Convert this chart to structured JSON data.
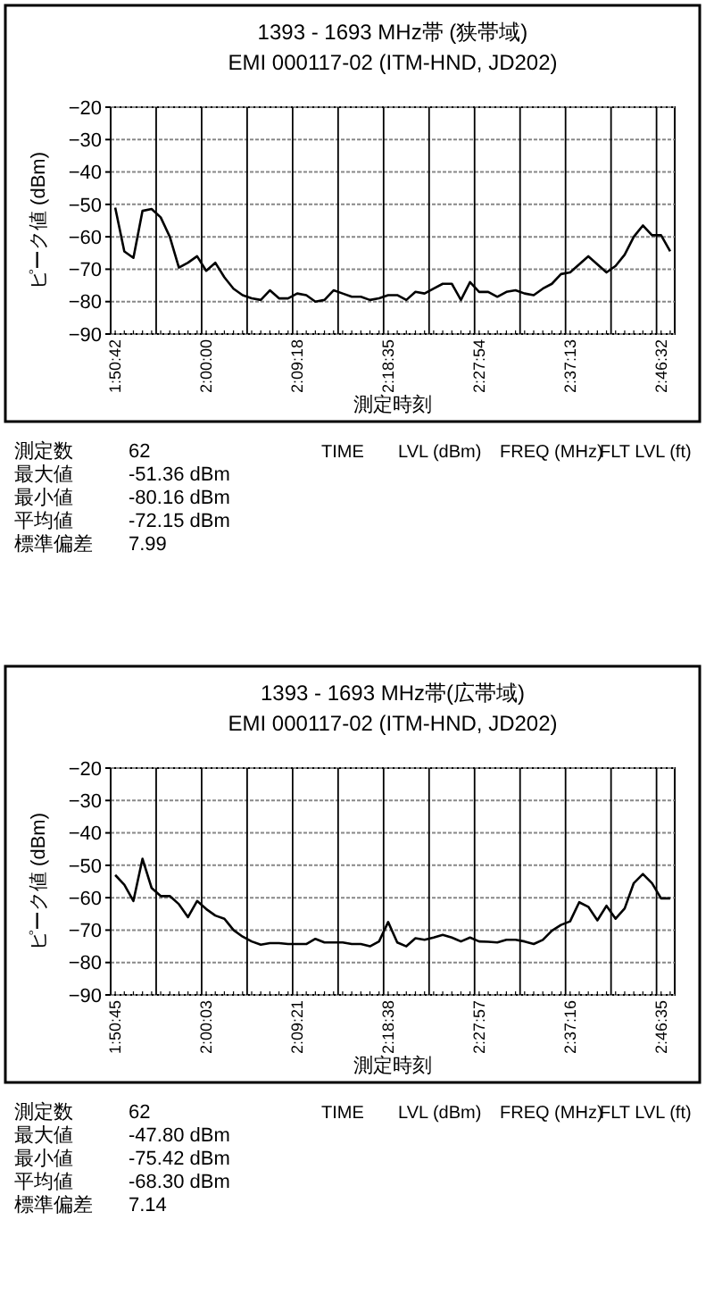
{
  "chart_data": [
    {
      "type": "line",
      "title": "1393 - 1693 MHz帯 (狭帯域)",
      "subtitle": "EMI 000117-02 (ITM-HND, JD202)",
      "xlabel": "測定時刻",
      "ylabel": "ピーク値 (dBm)",
      "categories": [
        "1:50:42",
        null,
        null,
        null,
        null,
        null,
        null,
        null,
        null,
        null,
        "2:00:00",
        null,
        null,
        null,
        null,
        null,
        null,
        null,
        null,
        null,
        "2:09:18",
        null,
        null,
        null,
        null,
        null,
        null,
        null,
        null,
        null,
        "2:18:35",
        null,
        null,
        null,
        null,
        null,
        null,
        null,
        null,
        null,
        "2:27:54",
        null,
        null,
        null,
        null,
        null,
        null,
        null,
        null,
        null,
        "2:37:13",
        null,
        null,
        null,
        null,
        null,
        null,
        null,
        null,
        null,
        "2:46:32",
        null
      ],
      "series": [
        {
          "color": "#000000",
          "values": [
            -51,
            -64.5,
            -66.5,
            -52,
            -51.4,
            -54,
            -60,
            -69.5,
            -68,
            -66,
            -70.5,
            -68,
            -72.5,
            -76,
            -78,
            -79,
            -79.5,
            -76.5,
            -79,
            -79,
            -77.5,
            -78,
            -80,
            -79.5,
            -76.5,
            -77.5,
            -78.5,
            -78.5,
            -79.5,
            -79,
            -78,
            -78,
            -79.5,
            -77,
            -77.5,
            -76,
            -74.5,
            -74.5,
            -79.5,
            -74,
            -77,
            -77,
            -78.5,
            -77,
            -76.5,
            -77.5,
            -78,
            -76,
            -74.5,
            -71.5,
            -71,
            -68.5,
            -66,
            -68.5,
            -71,
            -69,
            -65.5,
            -60,
            -56.5,
            -59.5,
            -59.5,
            -64.5
          ]
        }
      ],
      "ylim": [
        -90,
        -20
      ],
      "yticks": [
        -90,
        -80,
        -70,
        -60,
        -50,
        -40,
        -30,
        -20
      ],
      "grid": true,
      "marker": "none",
      "line_style": "solid",
      "annotations": [
        "測定数 62",
        "最大値 -51.36 dBm",
        "最小値 -80.16 dBm",
        "平均値 -72.15 dBm",
        "標準偏差 7.99",
        "TIME",
        "LVL (dBm)",
        "FREQ (MHz)",
        "FLT LVL (ft)"
      ]
    },
    {
      "type": "line",
      "title": "1393 - 1693 MHz帯(広帯域)",
      "subtitle": "EMI 000117-02 (ITM-HND, JD202)",
      "xlabel": "測定時刻",
      "ylabel": "ピーク値 (dBm)",
      "categories": [
        "1:50:45",
        null,
        null,
        null,
        null,
        null,
        null,
        null,
        null,
        null,
        "2:00:03",
        null,
        null,
        null,
        null,
        null,
        null,
        null,
        null,
        null,
        "2:09:21",
        null,
        null,
        null,
        null,
        null,
        null,
        null,
        null,
        null,
        "2:18:38",
        null,
        null,
        null,
        null,
        null,
        null,
        null,
        null,
        null,
        "2:27:57",
        null,
        null,
        null,
        null,
        null,
        null,
        null,
        null,
        null,
        "2:37:16",
        null,
        null,
        null,
        null,
        null,
        null,
        null,
        null,
        null,
        "2:46:35",
        null
      ],
      "series": [
        {
          "color": "#000000",
          "values": [
            -53,
            -56,
            -61,
            -48,
            -57,
            -59.5,
            -59.5,
            -62,
            -66,
            -61,
            -63.5,
            -65.5,
            -66.5,
            -70,
            -72,
            -73.5,
            -74.5,
            -74,
            -74,
            -74.3,
            -74.3,
            -74.3,
            -72.7,
            -73.8,
            -73.8,
            -73.8,
            -74.3,
            -74.3,
            -75,
            -73.5,
            -67.5,
            -73.8,
            -75,
            -72.5,
            -73,
            -72.3,
            -71.5,
            -72.3,
            -73.5,
            -72.3,
            -73.5,
            -73.6,
            -73.8,
            -73,
            -73,
            -73.5,
            -74.3,
            -73,
            -70.2,
            -68.4,
            -67.3,
            -61.4,
            -62.8,
            -67,
            -62.5,
            -66.5,
            -63.3,
            -55.5,
            -52.7,
            -55.5,
            -60.2,
            -60.2
          ]
        }
      ],
      "ylim": [
        -90,
        -20
      ],
      "yticks": [
        -90,
        -80,
        -70,
        -60,
        -50,
        -40,
        -30,
        -20
      ],
      "grid": true,
      "marker": "none",
      "line_style": "solid",
      "annotations": [
        "測定数 62",
        "最大値 -47.80 dBm",
        "最小値 -75.42 dBm",
        "平均値 -68.30 dBm",
        "標準偏差 7.14",
        "TIME",
        "LVL (dBm)",
        "FREQ (MHz)",
        "FLT LVL (ft)"
      ]
    }
  ]
}
